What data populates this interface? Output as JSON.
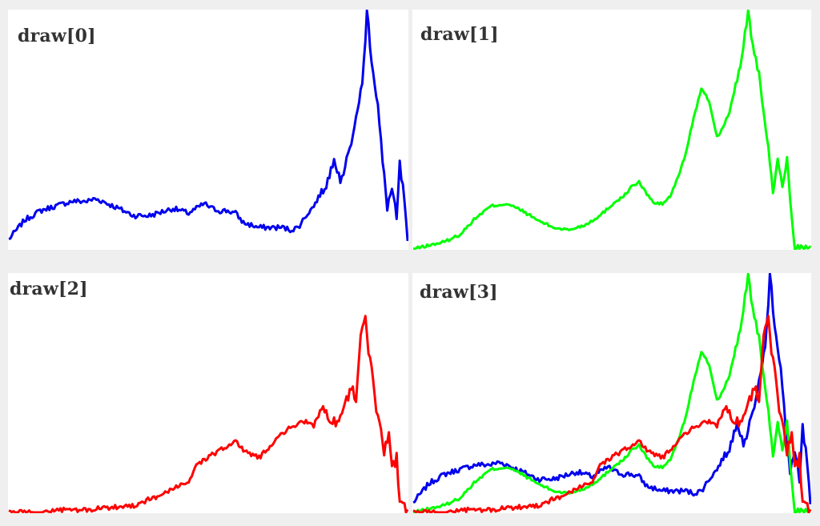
{
  "chart_data": [
    {
      "type": "line",
      "title": "draw[0]",
      "xlim": [
        0,
        255
      ],
      "ylim": [
        0,
        100
      ],
      "series": [
        {
          "color": "#0000ee",
          "values": []
        }
      ]
    },
    {
      "type": "line",
      "title": "draw[1]",
      "xlim": [
        0,
        255
      ],
      "ylim": [
        0,
        100
      ],
      "series": [
        {
          "color": "#00ff00",
          "values": []
        }
      ]
    },
    {
      "type": "line",
      "title": "draw[2]",
      "xlim": [
        0,
        255
      ],
      "ylim": [
        0,
        100
      ],
      "series": [
        {
          "color": "#ff0000",
          "values": []
        }
      ]
    },
    {
      "type": "line",
      "title": "draw[3]",
      "xlim": [
        0,
        255
      ],
      "ylim": [
        0,
        100
      ],
      "series": [
        {
          "color": "#0000ee",
          "values": []
        },
        {
          "color": "#00ff00",
          "values": []
        },
        {
          "color": "#ff0000",
          "values": []
        }
      ]
    }
  ],
  "hist_keypoints": {
    "blue": [
      [
        0,
        4
      ],
      [
        10,
        12
      ],
      [
        20,
        16
      ],
      [
        30,
        18
      ],
      [
        40,
        20
      ],
      [
        50,
        20
      ],
      [
        55,
        21
      ],
      [
        60,
        20
      ],
      [
        70,
        17
      ],
      [
        80,
        14
      ],
      [
        90,
        14
      ],
      [
        100,
        16
      ],
      [
        105,
        17
      ],
      [
        110,
        16
      ],
      [
        115,
        15
      ],
      [
        120,
        17
      ],
      [
        125,
        19
      ],
      [
        130,
        17
      ],
      [
        135,
        16
      ],
      [
        140,
        16
      ],
      [
        145,
        15
      ],
      [
        150,
        11
      ],
      [
        160,
        9
      ],
      [
        170,
        9
      ],
      [
        175,
        9
      ],
      [
        180,
        8
      ],
      [
        185,
        9
      ],
      [
        190,
        14
      ],
      [
        195,
        18
      ],
      [
        200,
        24
      ],
      [
        205,
        30
      ],
      [
        208,
        40
      ],
      [
        210,
        34
      ],
      [
        213,
        28
      ],
      [
        216,
        40
      ],
      [
        220,
        45
      ],
      [
        223,
        60
      ],
      [
        226,
        68
      ],
      [
        229,
        100
      ],
      [
        232,
        80
      ],
      [
        236,
        60
      ],
      [
        239,
        36
      ],
      [
        242,
        18
      ],
      [
        245,
        25
      ],
      [
        248,
        12
      ],
      [
        250,
        35
      ],
      [
        253,
        20
      ],
      [
        255,
        1
      ]
    ],
    "green": [
      [
        0,
        0
      ],
      [
        20,
        3
      ],
      [
        30,
        6
      ],
      [
        40,
        13
      ],
      [
        50,
        18
      ],
      [
        60,
        19
      ],
      [
        70,
        16
      ],
      [
        80,
        12
      ],
      [
        90,
        9
      ],
      [
        100,
        8
      ],
      [
        110,
        10
      ],
      [
        120,
        14
      ],
      [
        130,
        20
      ],
      [
        135,
        22
      ],
      [
        140,
        26
      ],
      [
        145,
        28
      ],
      [
        150,
        23
      ],
      [
        155,
        19
      ],
      [
        160,
        19
      ],
      [
        165,
        22
      ],
      [
        170,
        30
      ],
      [
        175,
        40
      ],
      [
        180,
        55
      ],
      [
        185,
        67
      ],
      [
        190,
        62
      ],
      [
        195,
        47
      ],
      [
        200,
        52
      ],
      [
        205,
        62
      ],
      [
        210,
        77
      ],
      [
        213,
        90
      ],
      [
        215,
        100
      ],
      [
        218,
        85
      ],
      [
        222,
        73
      ],
      [
        225,
        56
      ],
      [
        228,
        44
      ],
      [
        231,
        22
      ],
      [
        234,
        38
      ],
      [
        237,
        26
      ],
      [
        240,
        38
      ],
      [
        242,
        20
      ],
      [
        245,
        1
      ],
      [
        255,
        0
      ]
    ],
    "red": [
      [
        0,
        0
      ],
      [
        20,
        0
      ],
      [
        30,
        1
      ],
      [
        50,
        1
      ],
      [
        80,
        3
      ],
      [
        100,
        8
      ],
      [
        115,
        13
      ],
      [
        120,
        20
      ],
      [
        130,
        24
      ],
      [
        145,
        30
      ],
      [
        150,
        26
      ],
      [
        160,
        23
      ],
      [
        170,
        30
      ],
      [
        180,
        36
      ],
      [
        190,
        38
      ],
      [
        195,
        36
      ],
      [
        200,
        44
      ],
      [
        205,
        40
      ],
      [
        210,
        38
      ],
      [
        215,
        45
      ],
      [
        220,
        53
      ],
      [
        222,
        47
      ],
      [
        225,
        74
      ],
      [
        228,
        80
      ],
      [
        230,
        68
      ],
      [
        233,
        55
      ],
      [
        235,
        40
      ],
      [
        238,
        35
      ],
      [
        240,
        26
      ],
      [
        243,
        34
      ],
      [
        245,
        18
      ],
      [
        248,
        23
      ],
      [
        250,
        4
      ],
      [
        255,
        0
      ]
    ]
  }
}
